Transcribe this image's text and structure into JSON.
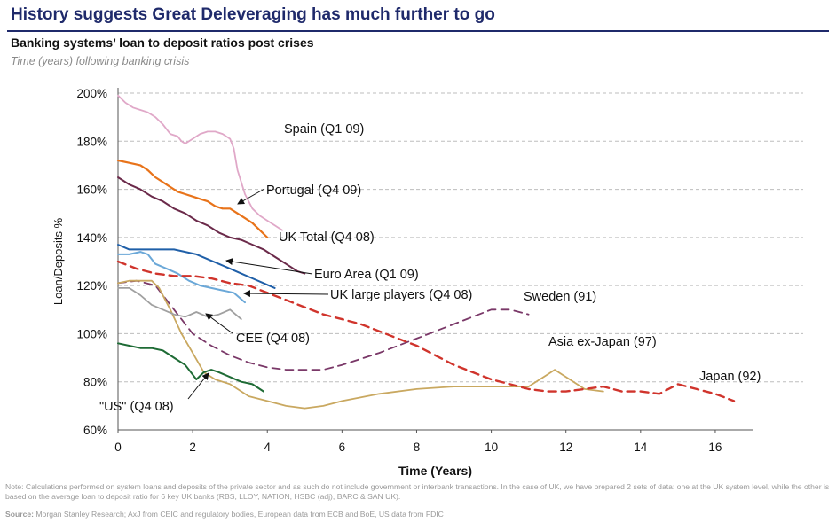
{
  "header": {
    "headline": "History suggests Great Deleveraging has much further to go",
    "subtitle": "Banking systems’ loan to deposit ratios post crises",
    "subnote": "Time (years) following banking crisis"
  },
  "footer": {
    "note": "Note: Calculations performed on system loans and deposits of the private sector and as such do not include government or interbank transactions. In the case of UK, we have prepared 2 sets of data: one at the UK system level, while the other is based on the average loan to deposit ratio for 6 key UK banks (RBS, LLOY, NATION, HSBC (adj), BARC & SAN UK).",
    "source_label": "Source:",
    "source_text": " Morgan Stanley Research; AxJ from CEIC and regulatory bodies, European data from ECB and BoE,  US data from FDIC"
  },
  "chart_data": {
    "type": "line",
    "title": "Banking systems’ loan to deposit ratios post crises",
    "xlabel": "Time (Years)",
    "ylabel": "Loan/Deposits %",
    "xlim": [
      0,
      17
    ],
    "ylim": [
      60,
      200
    ],
    "xticks": [
      0,
      2,
      4,
      6,
      8,
      10,
      12,
      14,
      16
    ],
    "yticks": [
      60,
      80,
      100,
      120,
      140,
      160,
      180,
      200
    ],
    "xtick_labels": [
      "0",
      "2",
      "4",
      "6",
      "8",
      "10",
      "12",
      "14",
      "16"
    ],
    "ytick_labels": [
      "60%",
      "80%",
      "100%",
      "120%",
      "140%",
      "160%",
      "180%",
      "200%"
    ],
    "gridlines": true,
    "series": [
      {
        "name": "Spain (Q1 09)",
        "color": "#e0a8c8",
        "dash": "solid",
        "width": 1.8,
        "x": [
          0,
          0.2,
          0.4,
          0.6,
          0.8,
          1.0,
          1.2,
          1.4,
          1.6,
          1.7,
          1.8,
          2.0,
          2.2,
          2.4,
          2.6,
          2.8,
          3.0,
          3.1,
          3.2,
          3.4,
          3.6,
          3.8,
          4.0,
          4.2,
          4.4
        ],
        "y": [
          199,
          196,
          194,
          193,
          192,
          190,
          187,
          183,
          182,
          180,
          179,
          181,
          183,
          184,
          184,
          183,
          181,
          177,
          168,
          158,
          152,
          149,
          147,
          145,
          143
        ]
      },
      {
        "name": "Portugal (Q4 09)",
        "color": "#e8731a",
        "dash": "solid",
        "width": 2.2,
        "x": [
          0,
          0.3,
          0.6,
          0.8,
          1.0,
          1.2,
          1.4,
          1.6,
          1.8,
          2.0,
          2.2,
          2.4,
          2.6,
          2.8,
          3.0,
          3.2,
          3.4,
          3.6,
          3.8,
          4.0
        ],
        "y": [
          172,
          171,
          170,
          168,
          165,
          163,
          161,
          159,
          158,
          157,
          156,
          155,
          153,
          152,
          152,
          150,
          148,
          146,
          143,
          140
        ]
      },
      {
        "name": "UK Total (Q4 08)",
        "color": "#6b2a4a",
        "dash": "solid",
        "width": 2,
        "x": [
          0,
          0.3,
          0.6,
          0.9,
          1.2,
          1.5,
          1.8,
          2.1,
          2.4,
          2.7,
          3.0,
          3.3,
          3.6,
          3.9,
          4.2,
          4.5,
          4.8,
          5.0
        ],
        "y": [
          165,
          162,
          160,
          157,
          155,
          152,
          150,
          147,
          145,
          142,
          140,
          139,
          137,
          135,
          132,
          129,
          126,
          125
        ]
      },
      {
        "name": "Euro Area (Q1 09)",
        "color": "#1f5fa8",
        "dash": "solid",
        "width": 2,
        "x": [
          0,
          0.3,
          0.6,
          0.9,
          1.2,
          1.5,
          1.8,
          2.1,
          2.4,
          2.7,
          3.0,
          3.3,
          3.6,
          3.9,
          4.2
        ],
        "y": [
          137,
          135,
          135,
          135,
          135,
          135,
          134,
          133,
          131,
          129,
          127,
          125,
          123,
          121,
          119
        ]
      },
      {
        "name": "UK large players (Q4 08)",
        "color": "#6ba8d8",
        "dash": "solid",
        "width": 2,
        "x": [
          0,
          0.3,
          0.6,
          0.8,
          1.0,
          1.3,
          1.6,
          1.9,
          2.2,
          2.5,
          2.8,
          3.1,
          3.4
        ],
        "y": [
          133,
          133,
          134,
          133,
          129,
          127,
          125,
          122,
          120,
          119,
          118,
          117,
          113
        ]
      },
      {
        "name": "Sweden (91)",
        "color": "#7a3868",
        "dash": "dash",
        "width": 1.8,
        "x": [
          0,
          0.5,
          1.0,
          1.5,
          2.0,
          2.5,
          3.0,
          3.5,
          4.0,
          4.5,
          5.0,
          5.5,
          6.0,
          7.0,
          8.0,
          9.0,
          10.0,
          10.5,
          11.0
        ],
        "y": [
          121,
          122,
          120,
          110,
          100,
          95,
          91,
          88,
          86,
          85,
          85,
          85,
          87,
          92,
          98,
          104,
          110,
          110,
          108
        ]
      },
      {
        "name": "Asia ex-Japan (97)",
        "color": "#c9a860",
        "dash": "solid",
        "width": 1.8,
        "x": [
          0,
          0.3,
          0.6,
          0.9,
          1.1,
          1.4,
          1.7,
          2.0,
          2.3,
          2.6,
          3.0,
          3.5,
          4.0,
          4.5,
          5.0,
          5.5,
          6.0,
          7.0,
          8.0,
          9.0,
          10.0,
          10.5,
          11.0,
          11.5,
          11.7,
          12.0,
          12.5,
          13.0
        ],
        "y": [
          121,
          122,
          122,
          122,
          119,
          110,
          100,
          92,
          84,
          81,
          79,
          74,
          72,
          70,
          69,
          70,
          72,
          75,
          77,
          78,
          78,
          78,
          78,
          83,
          85,
          82,
          77,
          76
        ]
      },
      {
        "name": "Japan (92)",
        "color": "#d0342c",
        "dash": "dash",
        "width": 2.4,
        "x": [
          0,
          0.5,
          1.0,
          1.5,
          2.0,
          2.5,
          3.0,
          3.5,
          4.0,
          4.5,
          5.0,
          5.5,
          6.0,
          6.5,
          7.0,
          7.5,
          8.0,
          8.5,
          9.0,
          9.5,
          10.0,
          10.5,
          11.0,
          11.5,
          12.0,
          12.5,
          13.0,
          13.5,
          14.0,
          14.5,
          15.0,
          15.5,
          16.0,
          16.5
        ],
        "y": [
          130,
          127,
          125,
          124,
          124,
          123,
          121,
          120,
          117,
          114,
          111,
          108,
          106,
          104,
          101,
          98,
          95,
          91,
          87,
          84,
          81,
          79,
          77,
          76,
          76,
          77,
          78,
          76,
          76,
          75,
          79,
          77,
          75,
          72
        ]
      },
      {
        "name": "CEE (Q4 08)",
        "color": "#a0a0a0",
        "dash": "solid",
        "width": 1.8,
        "x": [
          0,
          0.3,
          0.6,
          0.9,
          1.2,
          1.5,
          1.8,
          2.1,
          2.4,
          2.7,
          3.0,
          3.3
        ],
        "y": [
          119,
          119,
          116,
          112,
          110,
          108,
          107,
          109,
          107,
          108,
          110,
          106
        ]
      },
      {
        "name": "\"US\" (Q4 08)",
        "color": "#1e6b35",
        "dash": "solid",
        "width": 2,
        "x": [
          0,
          0.3,
          0.6,
          0.9,
          1.2,
          1.5,
          1.8,
          2.1,
          2.3,
          2.5,
          2.7,
          3.0,
          3.3,
          3.6,
          3.9
        ],
        "y": [
          96,
          95,
          94,
          94,
          93,
          90,
          87,
          81,
          84,
          85,
          84,
          82,
          80,
          79,
          76
        ]
      }
    ],
    "annotations": [
      {
        "text": "Spain (Q1 09)",
        "series": "Spain (Q1 09)"
      },
      {
        "text": "Portugal (Q4 09)",
        "series": "Portugal (Q4 09)"
      },
      {
        "text": "UK Total (Q4 08)",
        "series": "UK Total (Q4 08)"
      },
      {
        "text": "Euro Area (Q1 09)",
        "series": "Euro Area (Q1 09)"
      },
      {
        "text": "UK large players (Q4 08)",
        "series": "UK large players (Q4 08)"
      },
      {
        "text": "Sweden (91)",
        "series": "Sweden (91)"
      },
      {
        "text": "Asia ex-Japan (97)",
        "series": "Asia ex-Japan (97)"
      },
      {
        "text": "Japan (92)",
        "series": "Japan (92)"
      },
      {
        "text": "CEE (Q4 08)",
        "series": "CEE (Q4 08)"
      },
      {
        "text": "\"US\" (Q4 08)",
        "series": "\"US\" (Q4 08)"
      }
    ]
  }
}
